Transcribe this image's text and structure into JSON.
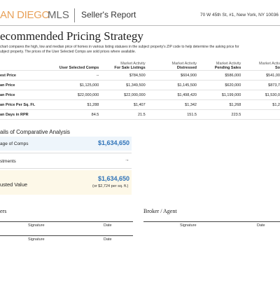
{
  "header": {
    "logo_left": "AN DIEGO",
    "logo_right": "MLS",
    "report": "Seller's Report",
    "address": "70 W 45th St, #1, New York, NY 10036"
  },
  "title": "ecommended Pricing Strategy",
  "description": [
    "chart compares the high, low and median price of homes in various listing statuses in the subject property's ZIP code to help determine the asking price for",
    "ubject property. The prices of the User Selected Comps are sold prices where available."
  ],
  "table": {
    "header": [
      [
        "",
        ""
      ],
      [
        "",
        "User Selected Comps"
      ],
      [
        "Market Activity",
        "For Sale Listings"
      ],
      [
        "Market Activity",
        "Distressed"
      ],
      [
        "Market Activity",
        "Pending Sales"
      ],
      [
        "Market Activ",
        "So"
      ]
    ],
    "rows": [
      [
        "est Price",
        "--",
        "$784,500",
        "$604,900",
        "$586,000",
        "$541,00"
      ],
      [
        "an Price",
        "$1,125,000",
        "$1,349,500",
        "$1,145,500",
        "$620,000",
        "$873,7"
      ],
      [
        "an Price",
        "$22,000,000",
        "$22,000,000",
        "$1,498,420",
        "$1,199,000",
        "$1,530,0"
      ],
      [
        "an Price Per Sq. Ft.",
        "$1,288",
        "$1,407",
        "$1,342",
        "$1,268",
        "$1,2"
      ],
      [
        "an Days in RPR",
        "84.5",
        "21.5",
        "151.5",
        "223.5",
        ""
      ]
    ]
  },
  "analysis": {
    "title": "ails of Comparative Analysis",
    "average_label": "age of Comps",
    "average_value": "$1,634,650",
    "adjustments_label": "stments",
    "adjustments_arrow": "→",
    "adjusted_label": "usted Value",
    "adjusted_value": "$1,634,650",
    "adjusted_sub": "(or $2,724 per sq. ft.)"
  },
  "signatures": {
    "left_title": "ers",
    "right_title": "Broker / Agent",
    "signature": "Signature",
    "date": "Date"
  }
}
